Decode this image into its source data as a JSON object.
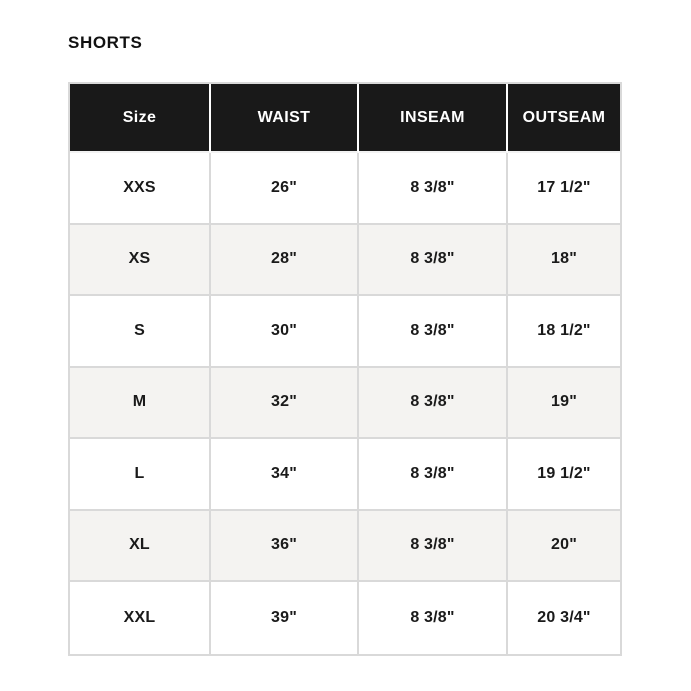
{
  "page": {
    "background_color": "#ffffff"
  },
  "title": "SHORTS",
  "colors": {
    "header_bg": "#191919",
    "header_text": "#ffffff",
    "body_text": "#1a1a1a",
    "row_alt_bg": "#f4f3f1",
    "border": "#d9d9d9"
  },
  "table": {
    "headers": [
      "Size",
      "WAIST",
      "INSEAM",
      "OUTSEAM"
    ],
    "rows": [
      {
        "size": "XXS",
        "waist": "26\"",
        "inseam": "8 3/8\"",
        "outseam": "17 1/2\""
      },
      {
        "size": "XS",
        "waist": "28\"",
        "inseam": "8 3/8\"",
        "outseam": "18\""
      },
      {
        "size": "S",
        "waist": "30\"",
        "inseam": "8 3/8\"",
        "outseam": "18 1/2\""
      },
      {
        "size": "M",
        "waist": "32\"",
        "inseam": "8 3/8\"",
        "outseam": "19\""
      },
      {
        "size": "L",
        "waist": "34\"",
        "inseam": "8 3/8\"",
        "outseam": "19 1/2\""
      },
      {
        "size": "XL",
        "waist": "36\"",
        "inseam": "8 3/8\"",
        "outseam": "20\""
      },
      {
        "size": "XXL",
        "waist": "39\"",
        "inseam": "8 3/8\"",
        "outseam": "20 3/4\""
      }
    ]
  }
}
